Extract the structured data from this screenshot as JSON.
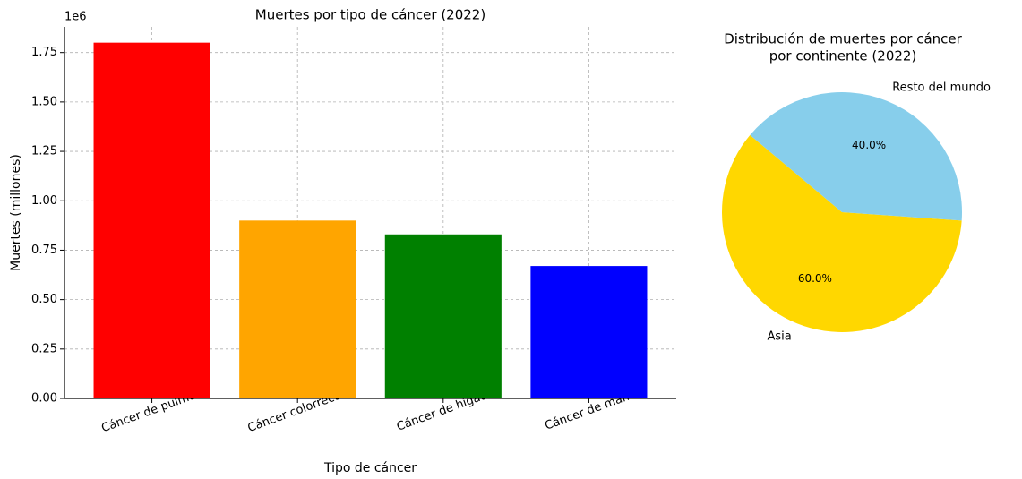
{
  "chart_data": [
    {
      "type": "bar",
      "title": "Muertes por tipo de cáncer (2022)",
      "x_label": "Tipo de cáncer",
      "y_label": "Muertes (millones)",
      "offset_label": "1e6",
      "categories": [
        "Cáncer de pulmón",
        "Cáncer colorrectal",
        "Cáncer de hígado",
        "Cáncer de mama"
      ],
      "values": [
        1.8,
        0.9,
        0.83,
        0.67
      ],
      "colors": [
        "#ff0000",
        "#ffa500",
        "#008000",
        "#0000ff"
      ],
      "ylim": [
        0,
        1.88
      ],
      "yticks": [
        {
          "value": 0,
          "label": "0.00"
        },
        {
          "value": 0.25,
          "label": "0.25"
        },
        {
          "value": 0.5,
          "label": "0.50"
        },
        {
          "value": 0.75,
          "label": "0.75"
        },
        {
          "value": 1,
          "label": "1.00"
        },
        {
          "value": 1.25,
          "label": "1.25"
        },
        {
          "value": 1.5,
          "label": "1.50"
        },
        {
          "value": 1.75,
          "label": "1.75"
        }
      ],
      "grid": true
    },
    {
      "type": "pie",
      "title_lines": [
        "Distribución de muertes por cáncer",
        "por continente (2022)"
      ],
      "categories": [
        "Asia",
        "Resto del mundo"
      ],
      "values": [
        60,
        40
      ],
      "value_labels": [
        "60.0%",
        "40.0%"
      ],
      "colors": [
        "#ffd700",
        "#87ceeb"
      ],
      "startangle": 140
    }
  ]
}
